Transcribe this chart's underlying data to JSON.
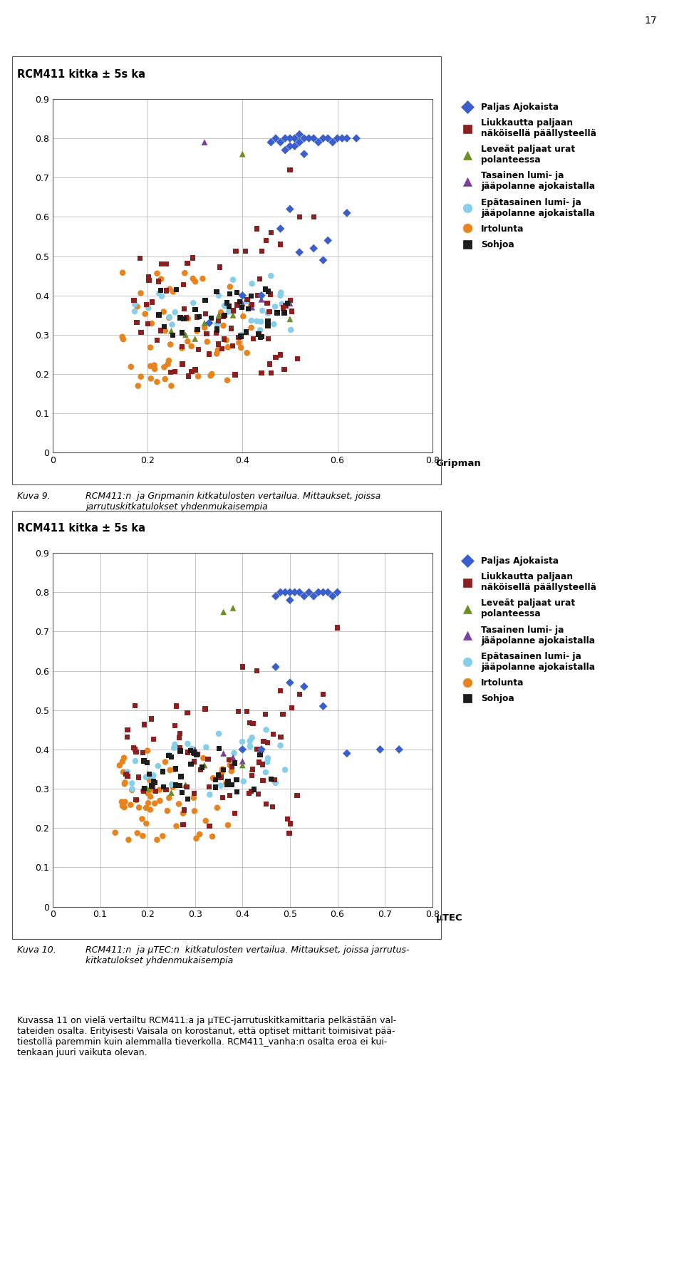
{
  "page_number": "17",
  "chart1_title": "RCM411 kitka ± 5s ka",
  "chart2_title": "RCM411 kitka ± 5s ka",
  "chart1_xlabel": "Gripman",
  "chart2_xlabel": "μTEC",
  "xlim1": [
    0,
    0.8
  ],
  "xlim2": [
    0,
    0.8
  ],
  "ylim": [
    0,
    0.9
  ],
  "xticks1": [
    0,
    0.2,
    0.4,
    0.6,
    0.8
  ],
  "xticks2": [
    0,
    0.1,
    0.2,
    0.3,
    0.4,
    0.5,
    0.6,
    0.7,
    0.8
  ],
  "yticks": [
    0,
    0.1,
    0.2,
    0.3,
    0.4,
    0.5,
    0.6,
    0.7,
    0.8,
    0.9
  ],
  "legend_labels": [
    "Paljas Ajokaista",
    "Liukkautta paljaan\nnäköisellä päällysteellä",
    "Leveät paljaat urat\npolanteessa",
    "Tasainen lumi- ja\njääpolanne ajokaistalla",
    "Epätasainen lumi- ja\njääpolanne ajokaistalla",
    "Irtolunta",
    "Sohjoa"
  ],
  "colors": [
    "#3A5FCD",
    "#8B2020",
    "#6B8E23",
    "#7B3F9E",
    "#87CEEB",
    "#E8841E",
    "#1C1C1C"
  ],
  "markers": [
    "D",
    "s",
    "^",
    "^",
    "o",
    "o",
    "s"
  ],
  "caption1_label": "Kuva 9.",
  "caption1_text": "RCM411:n  ja Gripmanin kitkatulosten vertailua. Mittaukset, joissa\njarrutuskitkatulokset yhdenmukaisempia",
  "caption2_label": "Kuva 10.",
  "caption2_text": "RCM411:n  ja μTEC:n  kitkatulosten vertailua. Mittaukset, joissa jarrutus-\nkitkatulokset yhdenmukaisempia",
  "body_text": "Kuvassa 11 on vielä vertailtu RCM411:a ja μTEC-jarrutuskitkamittaria pelkästään val-\ntateiden osalta. Erityisesti Vaisala on korostanut, että optiset mittarit toimisivat pää-\ntiestollä paremmin kuin alemmalla tieverkolla. RCM411_vanha:n osalta eroa ei kui-\ntenkaan juuri vaikuta olevan."
}
